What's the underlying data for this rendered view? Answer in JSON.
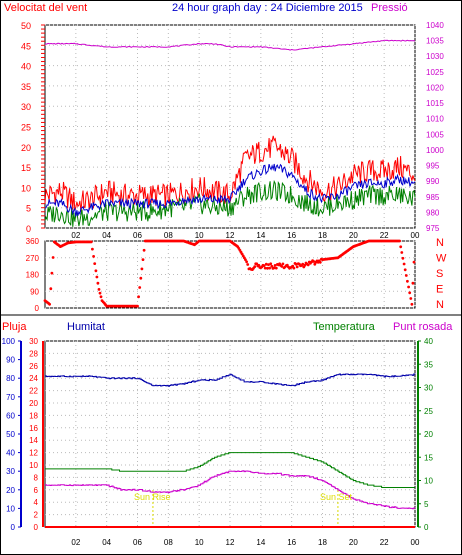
{
  "header": {
    "wind_label": "Velocitat del vent",
    "title": "24 hour graph day : 24 Diciembre 2015",
    "pressure_label": "Pressió"
  },
  "lower_header": {
    "rain_label": "Pluja",
    "humidity_label": "Humitat",
    "temperature_label": "Temperatura",
    "dewpoint_label": "Punt rosada"
  },
  "sun": {
    "rise_label": "Sun Rise",
    "set_label": "Sun Set"
  },
  "colors": {
    "wind": "#ff0000",
    "wind_avg": "#0000cc",
    "wind_gust_low": "#008000",
    "pressure": "#cc00cc",
    "humidity": "#0000aa",
    "temperature": "#008000",
    "dewpoint": "#cc00cc",
    "rain": "#ff0000",
    "grid": "#bbbbbb"
  },
  "chart_data": [
    {
      "type": "line",
      "name": "wind_pressure",
      "x_ticks": [
        "02",
        "04",
        "06",
        "08",
        "10",
        "12",
        "14",
        "16",
        "18",
        "20",
        "22",
        "00"
      ],
      "y_left_ticks": [
        0,
        5,
        10,
        15,
        20,
        25,
        30,
        35,
        40,
        45,
        50
      ],
      "y_right_ticks": [
        975,
        980,
        985,
        990,
        995,
        1000,
        1005,
        1010,
        1015,
        1020,
        1025,
        1030,
        1035,
        1040
      ],
      "ylim_left": [
        0,
        50
      ],
      "ylim_right": [
        975,
        1040
      ],
      "series": [
        {
          "key": "gust",
          "hours": [
            0,
            1,
            2,
            3,
            4,
            5,
            6,
            7,
            8,
            9,
            10,
            11,
            12,
            13,
            14,
            15,
            16,
            17,
            18,
            19,
            20,
            21,
            22,
            23,
            24
          ],
          "values": [
            8,
            9,
            6,
            7,
            9,
            8,
            8,
            8,
            8,
            9,
            10,
            9,
            8,
            17,
            19,
            20,
            17,
            12,
            9,
            10,
            13,
            14,
            14,
            15,
            13
          ]
        },
        {
          "key": "avg",
          "hours": [
            0,
            1,
            2,
            3,
            4,
            5,
            6,
            7,
            8,
            9,
            10,
            11,
            12,
            13,
            14,
            15,
            16,
            17,
            18,
            19,
            20,
            21,
            22,
            23,
            24
          ],
          "values": [
            6,
            6,
            4,
            5,
            6,
            6,
            6,
            6,
            6,
            7,
            7,
            7,
            7,
            12,
            14,
            15,
            13,
            9,
            7,
            8,
            10,
            11,
            11,
            12,
            11
          ]
        },
        {
          "key": "low",
          "hours": [
            0,
            1,
            2,
            3,
            4,
            5,
            6,
            7,
            8,
            9,
            10,
            11,
            12,
            13,
            14,
            15,
            16,
            17,
            18,
            19,
            20,
            21,
            22,
            23,
            24
          ],
          "values": [
            3,
            4,
            2,
            3,
            4,
            4,
            4,
            4,
            5,
            5,
            6,
            5,
            5,
            8,
            9,
            9,
            8,
            6,
            5,
            6,
            7,
            8,
            8,
            8,
            7
          ]
        },
        {
          "key": "pressure",
          "hours": [
            0,
            2,
            4,
            6,
            8,
            10,
            11,
            12,
            14,
            16,
            18,
            20,
            22,
            24
          ],
          "values": [
            1034,
            1034,
            1033,
            1033,
            1033,
            1034,
            1034,
            1033,
            1033,
            1032,
            1033,
            1034,
            1035,
            1035
          ]
        }
      ]
    },
    {
      "type": "scatter",
      "name": "wind_direction",
      "y_ticks": [
        0,
        90,
        180,
        270,
        360
      ],
      "ylim": [
        0,
        360
      ],
      "right_labels": [
        "N",
        "W",
        "S",
        "E",
        "N"
      ],
      "points": [
        [
          0,
          40
        ],
        [
          0.3,
          20
        ],
        [
          0.6,
          355
        ],
        [
          1,
          330
        ],
        [
          1.5,
          350
        ],
        [
          2,
          355
        ],
        [
          3,
          355
        ],
        [
          3.3,
          200
        ],
        [
          3.5,
          100
        ],
        [
          3.7,
          40
        ],
        [
          4,
          10
        ],
        [
          5,
          10
        ],
        [
          6,
          10
        ],
        [
          6.5,
          360
        ],
        [
          7,
          360
        ],
        [
          8,
          360
        ],
        [
          9,
          360
        ],
        [
          9.7,
          340
        ],
        [
          10,
          360
        ],
        [
          11,
          360
        ],
        [
          12,
          360
        ],
        [
          12.5,
          330
        ],
        [
          13,
          260
        ],
        [
          13.3,
          200
        ],
        [
          13.6,
          230
        ],
        [
          14,
          225
        ],
        [
          15,
          225
        ],
        [
          16,
          225
        ],
        [
          17,
          235
        ],
        [
          18,
          260
        ],
        [
          19,
          270
        ],
        [
          20,
          330
        ],
        [
          21,
          360
        ],
        [
          22,
          360
        ],
        [
          23,
          360
        ],
        [
          23.8,
          20
        ],
        [
          24,
          360
        ]
      ]
    },
    {
      "type": "line",
      "name": "temp_humidity",
      "y_humidity_ticks": [
        0,
        10,
        20,
        30,
        40,
        50,
        60,
        70,
        80,
        90,
        100
      ],
      "y_rain_ticks": [
        0,
        2,
        4,
        6,
        8,
        10,
        12,
        14,
        16,
        18,
        20,
        22,
        24,
        26,
        28,
        30
      ],
      "y_temp_ticks": [
        0,
        5,
        10,
        15,
        20,
        25,
        30,
        35,
        40
      ],
      "ylim_humidity": [
        0,
        100
      ],
      "ylim_temp": [
        0,
        40
      ],
      "series": [
        {
          "key": "humidity",
          "hours": [
            0,
            1,
            2,
            3,
            4,
            5,
            6,
            7,
            8,
            9,
            10,
            11,
            12,
            13,
            14,
            15,
            16,
            17,
            18,
            19,
            20,
            21,
            22,
            23,
            24
          ],
          "values": [
            81,
            81,
            81,
            81,
            80,
            80,
            80,
            76,
            76,
            77,
            79,
            79,
            82,
            78,
            78,
            77,
            76,
            78,
            79,
            82,
            82,
            82,
            81,
            81,
            82
          ]
        },
        {
          "key": "temperature",
          "hours": [
            0,
            1,
            2,
            3,
            4,
            5,
            6,
            7,
            8,
            9,
            10,
            11,
            12,
            13,
            14,
            15,
            16,
            17,
            18,
            19,
            20,
            21,
            22,
            23,
            24
          ],
          "values": [
            12.5,
            12.5,
            12.5,
            12.5,
            12.5,
            12,
            12,
            12,
            12,
            12,
            13,
            15,
            16,
            16,
            16,
            16,
            16,
            15,
            14,
            12,
            10,
            9,
            8.5,
            8.5,
            8.5
          ]
        },
        {
          "key": "dewpoint",
          "hours": [
            0,
            1,
            2,
            3,
            4,
            5,
            6,
            7,
            8,
            9,
            10,
            11,
            12,
            13,
            14,
            15,
            16,
            17,
            18,
            19,
            20,
            21,
            22,
            23,
            24
          ],
          "values": [
            9,
            9,
            9,
            9,
            9,
            8,
            8,
            7.5,
            7.5,
            8,
            9,
            11,
            12,
            12,
            11.5,
            11.5,
            11,
            11,
            10,
            8,
            6,
            5,
            4.5,
            4,
            4
          ]
        },
        {
          "key": "rain",
          "hours": [
            0,
            24
          ],
          "values": [
            0,
            0
          ]
        }
      ],
      "sunrise_hour": 7,
      "sunset_hour": 19
    }
  ]
}
